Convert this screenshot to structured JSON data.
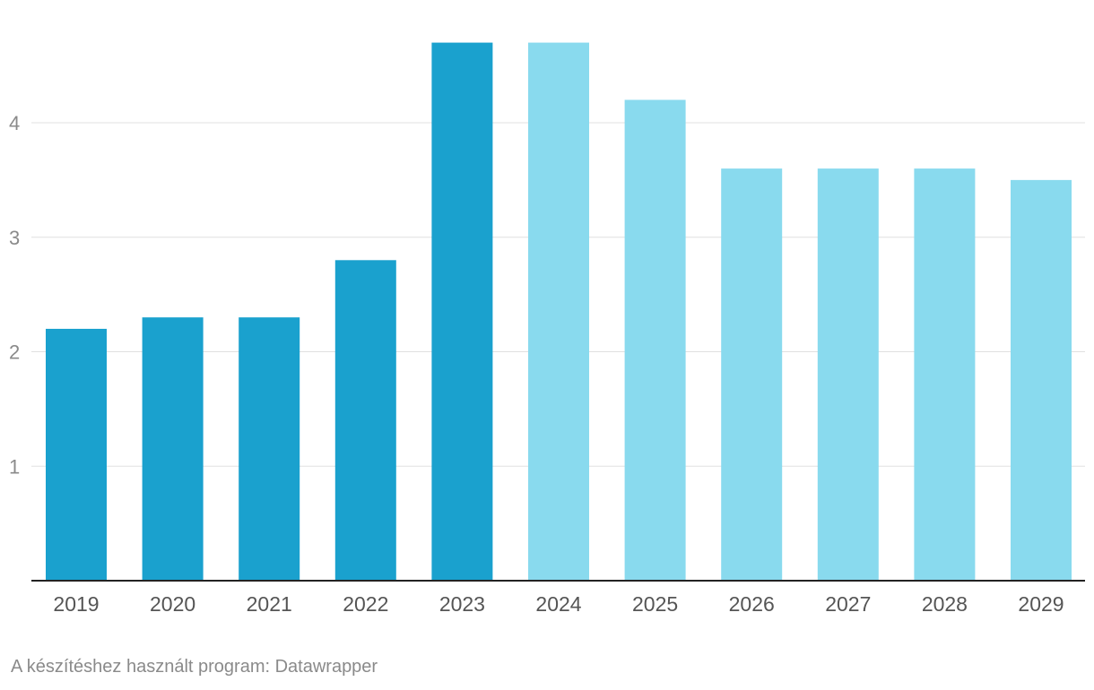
{
  "chart_data": {
    "type": "bar",
    "categories": [
      "2019",
      "2020",
      "2021",
      "2022",
      "2023",
      "2024",
      "2025",
      "2026",
      "2027",
      "2028",
      "2029"
    ],
    "values": [
      2.2,
      2.3,
      2.3,
      2.8,
      4.7,
      4.7,
      4.2,
      3.6,
      3.6,
      3.6,
      3.5
    ],
    "forecast": [
      false,
      false,
      false,
      false,
      false,
      true,
      true,
      true,
      true,
      true,
      true
    ],
    "yticks": [
      "1",
      "2",
      "3",
      "4"
    ],
    "ylim": [
      0,
      4.7
    ],
    "grid": true,
    "title": "",
    "xlabel": "",
    "ylabel": ""
  },
  "colors": {
    "actual": "#1aa1ce",
    "forecast": "#89daee",
    "grid": "#e0e0e0",
    "axis": "#222222"
  },
  "footer": {
    "credit": "A készítéshez használt program: Datawrapper"
  }
}
